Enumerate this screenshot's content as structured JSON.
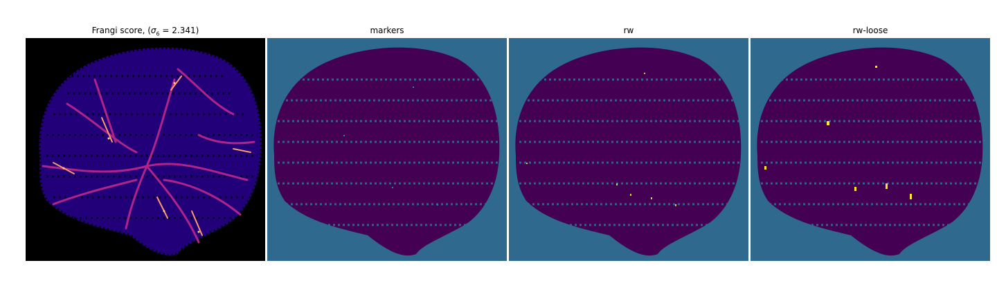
{
  "panels": [
    {
      "id": "frangi",
      "title_main": "Frangi score, (",
      "title_sigma": "σ",
      "title_sub": "6",
      "title_rest": " = 2.341)",
      "colormap": "magma",
      "background": "#000000",
      "blob": "#21007a",
      "vessel": "#e0409a",
      "highlight": "#ffd27a"
    },
    {
      "id": "markers",
      "title": "markers",
      "colormap": "viridis",
      "background": "#2f6a8e",
      "blob": "#440154",
      "spots": "#21908d"
    },
    {
      "id": "rw",
      "title": "rw",
      "colormap": "viridis",
      "background": "#2f6a8e",
      "blob": "#440154",
      "spots": "#b5de2b"
    },
    {
      "id": "rw-loose",
      "title": "rw-loose",
      "colormap": "viridis",
      "background": "#2f6a8e",
      "blob": "#440154",
      "spots": "#fde725"
    }
  ]
}
